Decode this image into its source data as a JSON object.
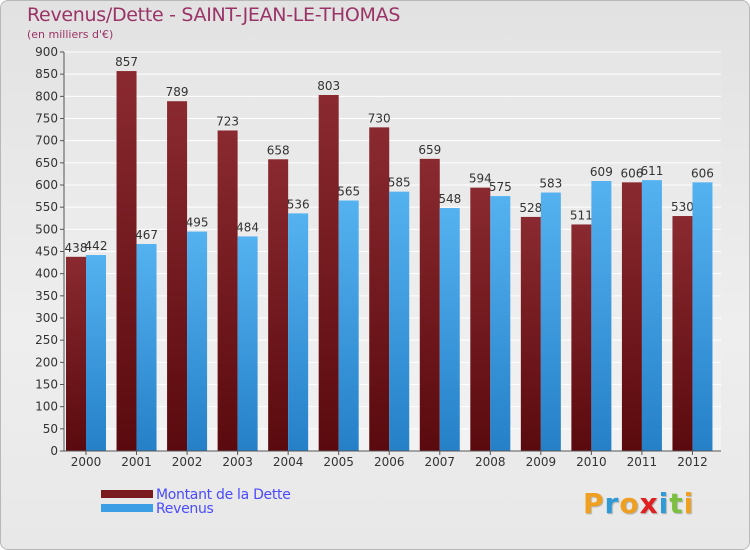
{
  "chart_data": {
    "type": "bar",
    "title": "Revenus/Dette - SAINT-JEAN-LE-THOMAS",
    "subtitle": "(en milliers d'€)",
    "categories": [
      "2000",
      "2001",
      "2002",
      "2003",
      "2004",
      "2005",
      "2006",
      "2007",
      "2008",
      "2009",
      "2010",
      "2011",
      "2012"
    ],
    "series": [
      {
        "name": "Montant de la Dette",
        "color": "#7a1a1e",
        "values": [
          438,
          857,
          789,
          723,
          658,
          803,
          730,
          659,
          594,
          528,
          511,
          606,
          530
        ]
      },
      {
        "name": "Revenus",
        "color": "#3c9fe6",
        "values": [
          442,
          467,
          495,
          484,
          536,
          565,
          585,
          548,
          575,
          583,
          609,
          611,
          606
        ]
      }
    ],
    "ylim": [
      0,
      900
    ],
    "ytick_step": 50,
    "grid": true,
    "legend_position": "bottom-left"
  },
  "branding": {
    "logo_letters": [
      "P",
      "r",
      "o",
      "x",
      "i",
      "t",
      "i"
    ],
    "logo_colors": [
      "#f0a020",
      "#2f9ad6",
      "#f0a020",
      "#e02020",
      "#2f9ad6",
      "#7cc040",
      "#f0a020"
    ]
  }
}
